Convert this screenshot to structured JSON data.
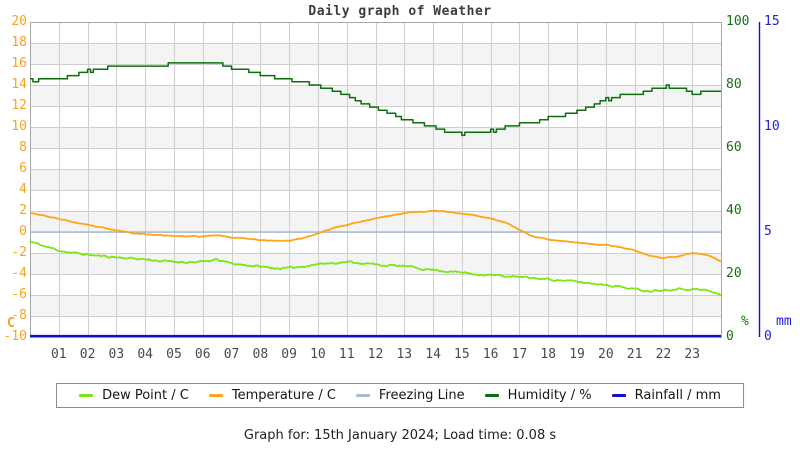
{
  "chart_data": {
    "type": "line",
    "title": "Daily graph of Weather",
    "x_ticks": [
      "01",
      "02",
      "03",
      "04",
      "05",
      "06",
      "07",
      "08",
      "09",
      "10",
      "11",
      "12",
      "13",
      "14",
      "15",
      "16",
      "17",
      "18",
      "19",
      "20",
      "21",
      "22",
      "23"
    ],
    "x_range": [
      0,
      24
    ],
    "grid": true,
    "band_fill": "alternating 2-unit horizontal bands",
    "axes": {
      "temperature": {
        "side": "left",
        "unit": "C",
        "min": -10,
        "max": 20,
        "ticks": [
          20,
          18,
          16,
          14,
          12,
          10,
          8,
          6,
          4,
          2,
          0,
          -2,
          -4,
          -6,
          -8,
          -10
        ],
        "label_color": "#f7a31c"
      },
      "humidity": {
        "side": "right",
        "unit": "%",
        "min": 0,
        "max": 100,
        "ticks": [
          100,
          80,
          60,
          40,
          20,
          0
        ],
        "label_color": "#157015"
      },
      "rainfall": {
        "side": "far-right",
        "unit": "mm",
        "min": 0,
        "max": 15,
        "ticks": [
          15,
          10,
          5,
          0
        ],
        "label_color": "#2222dd"
      }
    },
    "series": [
      {
        "name": "Dew Point / C",
        "axis": "temperature",
        "color": "#7ce512",
        "style": "noisy-line",
        "x": [
          0,
          0.5,
          1,
          1.5,
          2,
          2.5,
          3,
          3.5,
          4,
          4.5,
          5,
          5.5,
          6,
          6.5,
          7,
          7.5,
          8,
          8.5,
          9,
          9.5,
          10,
          10.5,
          11,
          11.5,
          12,
          12.5,
          13,
          13.5,
          14,
          14.5,
          15,
          15.5,
          16,
          16.5,
          17,
          17.5,
          18,
          18.5,
          19,
          19.5,
          20,
          20.5,
          21,
          21.5,
          22,
          22.5,
          23,
          23.5,
          24
        ],
        "values": [
          -0.9,
          -1.35,
          -1.75,
          -2.0,
          -2.15,
          -2.3,
          -2.4,
          -2.5,
          -2.6,
          -2.75,
          -2.85,
          -2.85,
          -2.85,
          -2.65,
          -3.0,
          -3.15,
          -3.3,
          -3.45,
          -3.45,
          -3.25,
          -3.05,
          -2.95,
          -2.85,
          -2.95,
          -3.1,
          -3.2,
          -3.25,
          -3.45,
          -3.6,
          -3.75,
          -3.85,
          -4.0,
          -4.1,
          -4.2,
          -4.3,
          -4.4,
          -4.5,
          -4.6,
          -4.75,
          -4.9,
          -5.0,
          -5.2,
          -5.45,
          -5.6,
          -5.5,
          -5.4,
          -5.45,
          -5.55,
          -6.0
        ]
      },
      {
        "name": "Temperature / C",
        "axis": "temperature",
        "color": "#ffa415",
        "style": "noisy-line",
        "x": [
          0,
          0.5,
          1,
          1.5,
          2,
          2.5,
          3,
          3.5,
          4,
          4.5,
          5,
          5.5,
          6,
          6.5,
          7,
          7.5,
          8,
          8.5,
          9,
          9.5,
          10,
          10.5,
          11,
          11.5,
          12,
          12.5,
          13,
          13.5,
          14,
          14.5,
          15,
          15.5,
          16,
          16.5,
          17,
          17.5,
          18,
          18.5,
          19,
          19.5,
          20,
          20.5,
          21,
          21.5,
          22,
          22.5,
          23,
          23.5,
          24
        ],
        "values": [
          1.85,
          1.55,
          1.25,
          0.95,
          0.65,
          0.4,
          0.15,
          -0.05,
          -0.2,
          -0.3,
          -0.36,
          -0.42,
          -0.44,
          -0.3,
          -0.5,
          -0.6,
          -0.75,
          -0.85,
          -0.8,
          -0.6,
          -0.15,
          0.35,
          0.7,
          1.0,
          1.3,
          1.55,
          1.8,
          1.95,
          2.0,
          1.92,
          1.75,
          1.55,
          1.3,
          0.95,
          0.2,
          -0.45,
          -0.7,
          -0.85,
          -1.0,
          -1.15,
          -1.25,
          -1.45,
          -1.75,
          -2.25,
          -2.5,
          -2.3,
          -2.0,
          -2.15,
          -2.8
        ]
      },
      {
        "name": "Freezing Line",
        "axis": "temperature",
        "color": "#a9bdd2",
        "style": "straight-line",
        "x": [
          0,
          24
        ],
        "values": [
          0,
          0
        ]
      },
      {
        "name": "Humidity / %",
        "axis": "humidity",
        "color": "#0c6e0c",
        "style": "stepped-line",
        "x": [
          0,
          0.5,
          1,
          1.5,
          2,
          2.5,
          3,
          3.5,
          4,
          4.5,
          5,
          5.5,
          6,
          6.5,
          7,
          7.5,
          8,
          8.5,
          9,
          9.5,
          10,
          10.5,
          11,
          11.5,
          12,
          12.5,
          13,
          13.5,
          14,
          14.5,
          15,
          15.5,
          16,
          16.5,
          17,
          17.5,
          18,
          18.5,
          19,
          19.5,
          20,
          20.5,
          21,
          21.5,
          22,
          22.5,
          23,
          23.5,
          24
        ],
        "values": [
          81.5,
          81.5,
          82,
          83.2,
          84.3,
          85.3,
          86.2,
          86.2,
          85.6,
          86.2,
          86.5,
          87,
          87.3,
          86.8,
          85.3,
          84.4,
          83.4,
          82.3,
          81.6,
          80.6,
          79.6,
          78.2,
          76.4,
          74.3,
          72.4,
          70.9,
          69.2,
          67.8,
          66.8,
          65.2,
          64.5,
          64.7,
          65.4,
          66.4,
          67.7,
          68.3,
          69.4,
          70.3,
          71.7,
          73.2,
          75.3,
          76.3,
          76.8,
          78.3,
          79.6,
          79.2,
          77.6,
          77.6,
          77.9
        ]
      },
      {
        "name": "Rainfall / mm",
        "axis": "rainfall",
        "color": "#0f0fd0",
        "style": "straight-line",
        "x": [
          0,
          24
        ],
        "values": [
          0,
          0
        ]
      }
    ]
  },
  "caption": "Graph for: 15th January 2024; Load time: 0.08 s",
  "colors": {
    "grid": "#cfcfcf",
    "band": "#f4f4f4",
    "frame": "#a8a8a8",
    "title": "#3c3c3c",
    "x_tick": "#4a4a4a",
    "caption": "#1f1f1f",
    "legend_border": "#8a8a8a"
  }
}
